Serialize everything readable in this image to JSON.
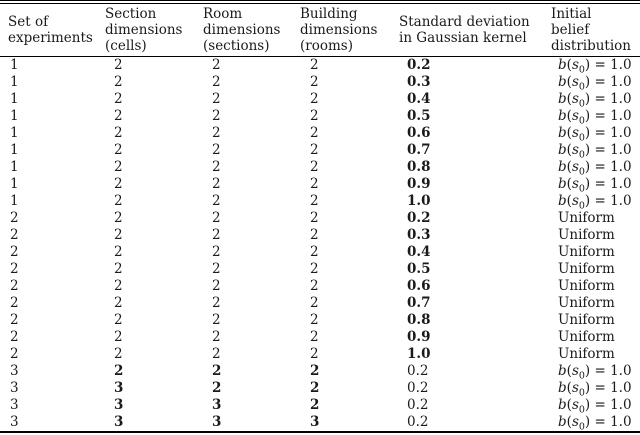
{
  "colors": {
    "text": "#1a1a1a",
    "rule": "#000000",
    "background": "#ffffff"
  },
  "table": {
    "columns": [
      {
        "id": "set",
        "lines": [
          "Set of",
          "experiments"
        ]
      },
      {
        "id": "section",
        "lines": [
          "Section",
          "dimensions",
          "(cells)"
        ]
      },
      {
        "id": "room",
        "lines": [
          "Room",
          "dimensions",
          "(sections)"
        ]
      },
      {
        "id": "building",
        "lines": [
          "Building",
          "dimensions",
          "(rooms)"
        ]
      },
      {
        "id": "std",
        "lines": [
          "Standard deviation",
          "in Gaussian kernel"
        ]
      },
      {
        "id": "belief",
        "lines": [
          "Initial",
          "belief",
          "distribution"
        ]
      }
    ],
    "belief_math": [
      [
        "i",
        "b"
      ],
      [
        "t",
        "("
      ],
      [
        "i",
        "s"
      ],
      [
        "sub",
        "0"
      ],
      [
        "t",
        ") = 1.0"
      ]
    ],
    "uniform_label": "Uniform",
    "rows": [
      {
        "cells": [
          {
            "text": "1"
          },
          {
            "text": "2"
          },
          {
            "text": "2"
          },
          {
            "text": "2"
          },
          {
            "text": "0.2",
            "bold": true
          },
          {
            "type": "belief"
          }
        ]
      },
      {
        "cells": [
          {
            "text": "1"
          },
          {
            "text": "2"
          },
          {
            "text": "2"
          },
          {
            "text": "2"
          },
          {
            "text": "0.3",
            "bold": true
          },
          {
            "type": "belief"
          }
        ]
      },
      {
        "cells": [
          {
            "text": "1"
          },
          {
            "text": "2"
          },
          {
            "text": "2"
          },
          {
            "text": "2"
          },
          {
            "text": "0.4",
            "bold": true
          },
          {
            "type": "belief"
          }
        ]
      },
      {
        "cells": [
          {
            "text": "1"
          },
          {
            "text": "2"
          },
          {
            "text": "2"
          },
          {
            "text": "2"
          },
          {
            "text": "0.5",
            "bold": true
          },
          {
            "type": "belief"
          }
        ]
      },
      {
        "cells": [
          {
            "text": "1"
          },
          {
            "text": "2"
          },
          {
            "text": "2"
          },
          {
            "text": "2"
          },
          {
            "text": "0.6",
            "bold": true
          },
          {
            "type": "belief"
          }
        ]
      },
      {
        "cells": [
          {
            "text": "1"
          },
          {
            "text": "2"
          },
          {
            "text": "2"
          },
          {
            "text": "2"
          },
          {
            "text": "0.7",
            "bold": true
          },
          {
            "type": "belief"
          }
        ]
      },
      {
        "cells": [
          {
            "text": "1"
          },
          {
            "text": "2"
          },
          {
            "text": "2"
          },
          {
            "text": "2"
          },
          {
            "text": "0.8",
            "bold": true
          },
          {
            "type": "belief"
          }
        ]
      },
      {
        "cells": [
          {
            "text": "1"
          },
          {
            "text": "2"
          },
          {
            "text": "2"
          },
          {
            "text": "2"
          },
          {
            "text": "0.9",
            "bold": true
          },
          {
            "type": "belief"
          }
        ]
      },
      {
        "cells": [
          {
            "text": "1"
          },
          {
            "text": "2"
          },
          {
            "text": "2"
          },
          {
            "text": "2"
          },
          {
            "text": "1.0",
            "bold": true
          },
          {
            "type": "belief"
          }
        ]
      },
      {
        "cells": [
          {
            "text": "2"
          },
          {
            "text": "2"
          },
          {
            "text": "2"
          },
          {
            "text": "2"
          },
          {
            "text": "0.2",
            "bold": true
          },
          {
            "text": "Uniform"
          }
        ]
      },
      {
        "cells": [
          {
            "text": "2"
          },
          {
            "text": "2"
          },
          {
            "text": "2"
          },
          {
            "text": "2"
          },
          {
            "text": "0.3",
            "bold": true
          },
          {
            "text": "Uniform"
          }
        ]
      },
      {
        "cells": [
          {
            "text": "2"
          },
          {
            "text": "2"
          },
          {
            "text": "2"
          },
          {
            "text": "2"
          },
          {
            "text": "0.4",
            "bold": true
          },
          {
            "text": "Uniform"
          }
        ]
      },
      {
        "cells": [
          {
            "text": "2"
          },
          {
            "text": "2"
          },
          {
            "text": "2"
          },
          {
            "text": "2"
          },
          {
            "text": "0.5",
            "bold": true
          },
          {
            "text": "Uniform"
          }
        ]
      },
      {
        "cells": [
          {
            "text": "2"
          },
          {
            "text": "2"
          },
          {
            "text": "2"
          },
          {
            "text": "2"
          },
          {
            "text": "0.6",
            "bold": true
          },
          {
            "text": "Uniform"
          }
        ]
      },
      {
        "cells": [
          {
            "text": "2"
          },
          {
            "text": "2"
          },
          {
            "text": "2"
          },
          {
            "text": "2"
          },
          {
            "text": "0.7",
            "bold": true
          },
          {
            "text": "Uniform"
          }
        ]
      },
      {
        "cells": [
          {
            "text": "2"
          },
          {
            "text": "2"
          },
          {
            "text": "2"
          },
          {
            "text": "2"
          },
          {
            "text": "0.8",
            "bold": true
          },
          {
            "text": "Uniform"
          }
        ]
      },
      {
        "cells": [
          {
            "text": "2"
          },
          {
            "text": "2"
          },
          {
            "text": "2"
          },
          {
            "text": "2"
          },
          {
            "text": "0.9",
            "bold": true
          },
          {
            "text": "Uniform"
          }
        ]
      },
      {
        "cells": [
          {
            "text": "2"
          },
          {
            "text": "2"
          },
          {
            "text": "2"
          },
          {
            "text": "2"
          },
          {
            "text": "1.0",
            "bold": true
          },
          {
            "text": "Uniform"
          }
        ]
      },
      {
        "cells": [
          {
            "text": "3"
          },
          {
            "text": "2",
            "bold": true
          },
          {
            "text": "2",
            "bold": true
          },
          {
            "text": "2",
            "bold": true
          },
          {
            "text": "0.2"
          },
          {
            "type": "belief"
          }
        ]
      },
      {
        "cells": [
          {
            "text": "3"
          },
          {
            "text": "3",
            "bold": true
          },
          {
            "text": "2",
            "bold": true
          },
          {
            "text": "2",
            "bold": true
          },
          {
            "text": "0.2"
          },
          {
            "type": "belief"
          }
        ]
      },
      {
        "cells": [
          {
            "text": "3"
          },
          {
            "text": "3",
            "bold": true
          },
          {
            "text": "3",
            "bold": true
          },
          {
            "text": "2",
            "bold": true
          },
          {
            "text": "0.2"
          },
          {
            "type": "belief"
          }
        ]
      },
      {
        "cells": [
          {
            "text": "3"
          },
          {
            "text": "3",
            "bold": true
          },
          {
            "text": "3",
            "bold": true
          },
          {
            "text": "3",
            "bold": true
          },
          {
            "text": "0.2"
          },
          {
            "type": "belief"
          }
        ]
      }
    ]
  }
}
